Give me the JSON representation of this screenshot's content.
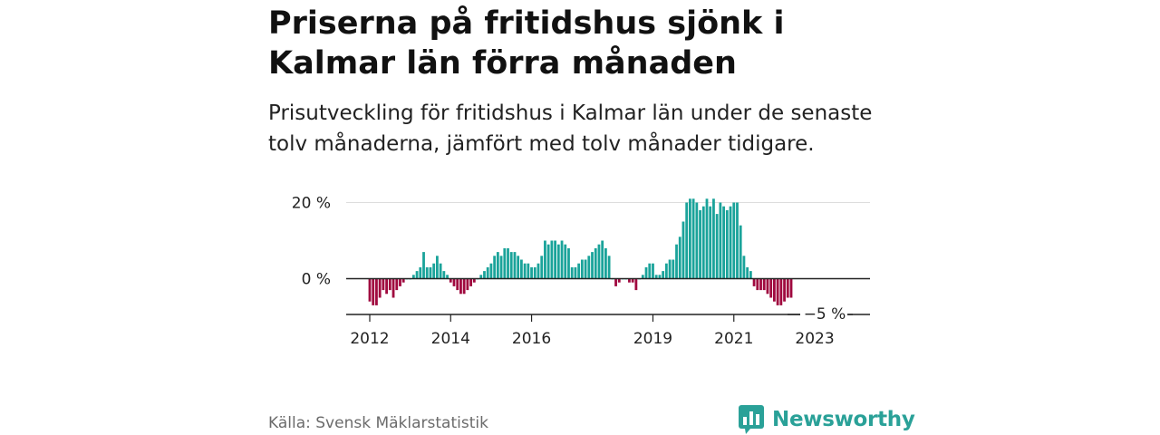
{
  "header": {
    "title": "Priserna på fritidshus sjönk i Kalmar län förra månaden",
    "subtitle": "Prisutveckling för fritidshus i Kalmar län under de senaste tolv månaderna, jämfört med tolv månader tidigare."
  },
  "footer": {
    "source": "Källa: Svensk Mäklarstatistik",
    "brand": "Newsworthy"
  },
  "colors": {
    "positive": "#1aa39a",
    "negative": "#a0093f",
    "brand": "#2aa198"
  },
  "chart_data": {
    "type": "bar",
    "title": "",
    "xlabel": "",
    "ylabel": "",
    "ylim": [
      -9,
      22
    ],
    "y_ticks": [
      {
        "value": 0,
        "label": "0 %"
      },
      {
        "value": 20,
        "label": "20 %"
      }
    ],
    "x_ticks": [
      {
        "index": 0,
        "label": "2012"
      },
      {
        "index": 24,
        "label": "2014"
      },
      {
        "index": 48,
        "label": "2016"
      },
      {
        "index": 84,
        "label": "2019"
      },
      {
        "index": 108,
        "label": "2021"
      },
      {
        "index": 132,
        "label": "2023"
      }
    ],
    "start": "2012-01",
    "frequency": "monthly",
    "last_value_label": "−5 %",
    "values": [
      -6,
      -7,
      -7,
      -5,
      -3,
      -4,
      -3,
      -5,
      -3,
      -2,
      -1,
      0,
      0,
      1,
      2,
      3,
      7,
      3,
      3,
      4,
      6,
      4,
      2,
      1,
      -1,
      -2,
      -3,
      -4,
      -4,
      -3,
      -2,
      -1,
      0,
      1,
      2,
      3,
      4,
      6,
      7,
      6,
      8,
      8,
      7,
      7,
      6,
      5,
      4,
      4,
      3,
      3,
      4,
      6,
      10,
      9,
      10,
      10,
      9,
      10,
      9,
      8,
      3,
      3,
      4,
      5,
      5,
      6,
      7,
      8,
      9,
      10,
      8,
      6,
      0,
      -2,
      -1,
      0,
      0,
      -1,
      -1,
      -3,
      0,
      1,
      3,
      4,
      4,
      1,
      1,
      2,
      4,
      5,
      5,
      9,
      11,
      15,
      20,
      21,
      21,
      20,
      18,
      19,
      21,
      19,
      21,
      17,
      20,
      19,
      18,
      19,
      20,
      20,
      14,
      6,
      3,
      2,
      -2,
      -3,
      -3,
      -3,
      -4,
      -5,
      -6,
      -7,
      -7,
      -6,
      -5,
      -5
    ]
  }
}
